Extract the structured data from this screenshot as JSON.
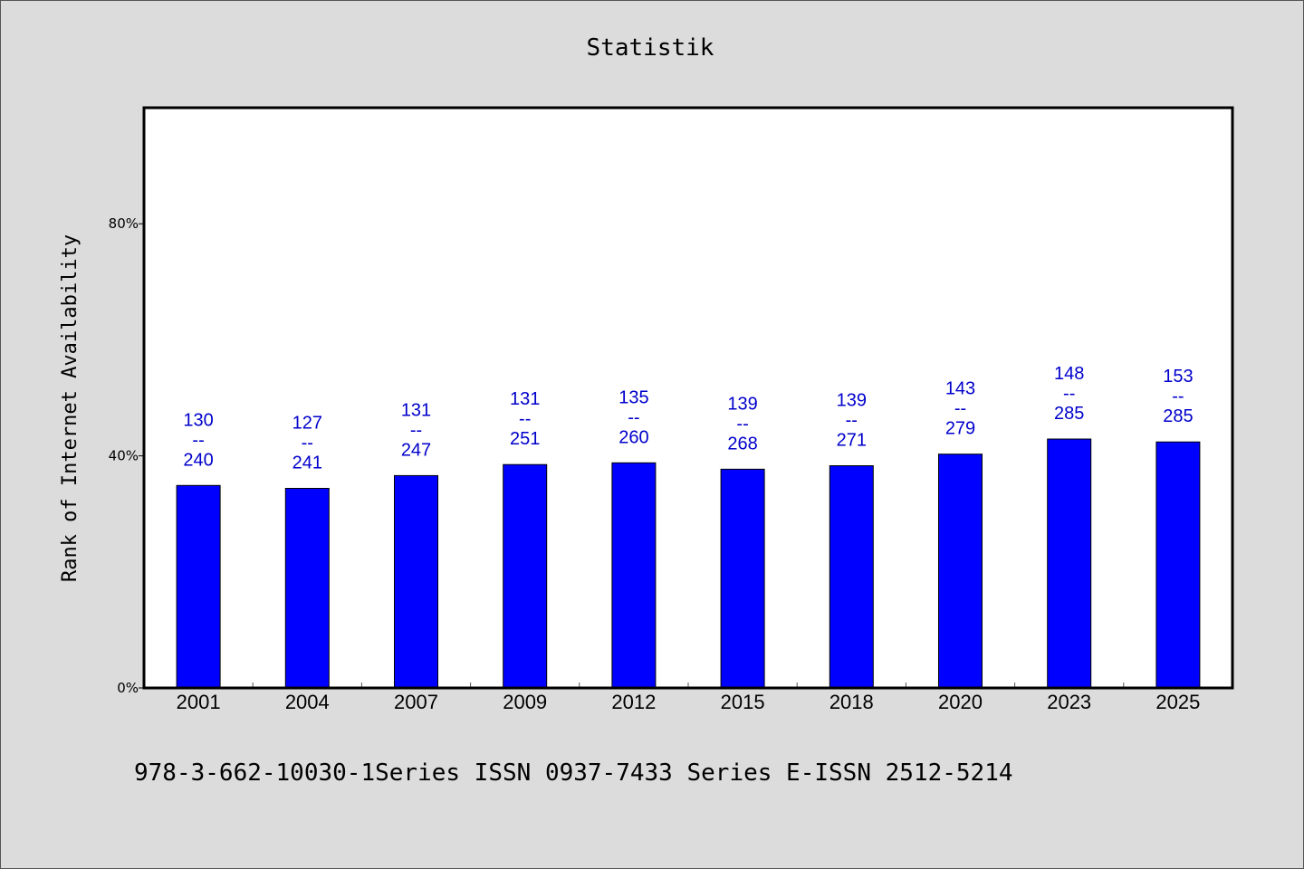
{
  "chart_data": {
    "type": "bar",
    "title": "Statistik",
    "ylabel": "Rank of Internet Availability",
    "xlabel": "",
    "categories": [
      "2001",
      "2004",
      "2007",
      "2009",
      "2012",
      "2015",
      "2018",
      "2020",
      "2023",
      "2025"
    ],
    "values": [
      34.9,
      34.4,
      36.6,
      38.5,
      38.8,
      37.7,
      38.3,
      40.3,
      42.9,
      42.4
    ],
    "data_labels": [
      [
        "130",
        "--",
        "240"
      ],
      [
        "127",
        "--",
        "241"
      ],
      [
        "131",
        "--",
        "247"
      ],
      [
        "131",
        "--",
        "251"
      ],
      [
        "135",
        "--",
        "260"
      ],
      [
        "139",
        "--",
        "268"
      ],
      [
        "139",
        "--",
        "271"
      ],
      [
        "143",
        "--",
        "279"
      ],
      [
        "148",
        "--",
        "285"
      ],
      [
        "153",
        "--",
        "285"
      ]
    ],
    "ylim": [
      0,
      100
    ],
    "yticks": [
      0,
      40,
      80
    ],
    "ytick_labels": [
      "0%",
      "40%",
      "80%"
    ],
    "bar_color": "#0000ff",
    "label_color": "#0000cc",
    "grid": false,
    "legend": "none"
  },
  "footer": "978-3-662-10030-1Series ISSN 0937-7433 Series E-ISSN 2512-5214",
  "colors": {
    "background": "#dcdcdc",
    "plot_background": "#ffffff"
  }
}
